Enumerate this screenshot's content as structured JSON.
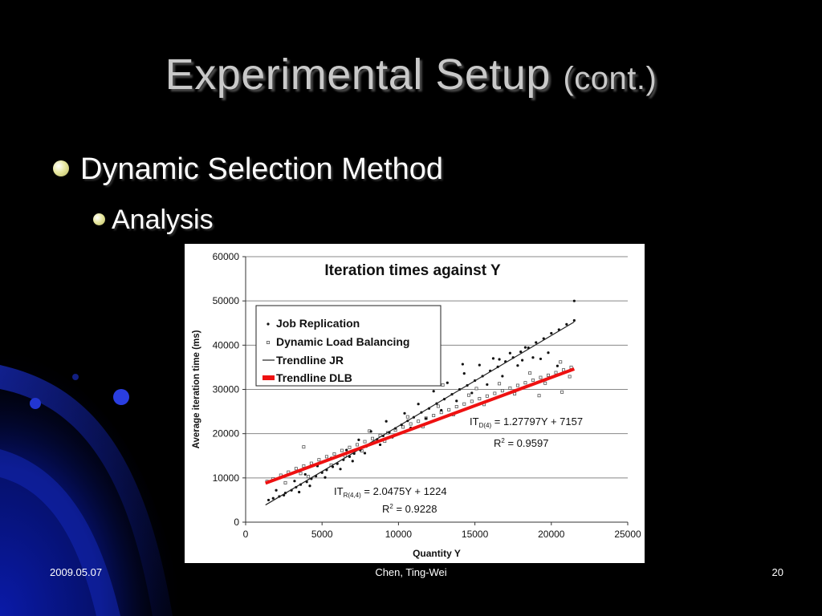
{
  "slide": {
    "title_main": "Experimental Setup",
    "title_sub": "(cont.)",
    "bullet_level1": "Dynamic Selection Method",
    "bullet_level2": "Analysis",
    "footer_date": "2009.05.07",
    "footer_author": "Chen, Ting-Wei",
    "footer_page": "20"
  },
  "colors": {
    "background": "#000000",
    "title": "#c9c9c9",
    "jr_points": "#111111",
    "dlb_points": "#555555",
    "trend_jr": "#222222",
    "trend_dlb": "#ee1111",
    "grid": "#888888"
  },
  "chart_data": {
    "type": "scatter",
    "title": "Iteration times against Y",
    "xlabel": "Quantity Y",
    "ylabel": "Average iteration time (ms)",
    "xlim": [
      0,
      25000
    ],
    "ylim": [
      0,
      60000
    ],
    "xticks": [
      0,
      5000,
      10000,
      15000,
      20000,
      25000
    ],
    "yticks": [
      0,
      10000,
      20000,
      30000,
      40000,
      50000,
      60000
    ],
    "grid": "horizontal",
    "legend_position": "top-left",
    "legend": [
      "Job Replication",
      "Dynamic Load Balancing",
      "Trendline JR",
      "Trendline DLB"
    ],
    "series": [
      {
        "name": "Job Replication",
        "marker": "dot",
        "points": [
          [
            1500,
            5000
          ],
          [
            1800,
            5400
          ],
          [
            2200,
            5800
          ],
          [
            2600,
            6600
          ],
          [
            3000,
            7200
          ],
          [
            3300,
            7900
          ],
          [
            3600,
            8500
          ],
          [
            4000,
            9100
          ],
          [
            4300,
            9800
          ],
          [
            4600,
            10400
          ],
          [
            5000,
            11200
          ],
          [
            5300,
            11800
          ],
          [
            5700,
            12500
          ],
          [
            6000,
            13200
          ],
          [
            6400,
            14100
          ],
          [
            6800,
            14800
          ],
          [
            7100,
            15500
          ],
          [
            7500,
            16300
          ],
          [
            7900,
            17100
          ],
          [
            8300,
            18000
          ],
          [
            8600,
            18700
          ],
          [
            9000,
            19500
          ],
          [
            9400,
            20300
          ],
          [
            9800,
            21200
          ],
          [
            10200,
            22000
          ],
          [
            10600,
            22900
          ],
          [
            11000,
            23700
          ],
          [
            11500,
            24800
          ],
          [
            12000,
            25700
          ],
          [
            12500,
            26800
          ],
          [
            13000,
            27800
          ],
          [
            13500,
            28900
          ],
          [
            14000,
            30000
          ],
          [
            14500,
            30900
          ],
          [
            15000,
            32000
          ],
          [
            15500,
            33000
          ],
          [
            16000,
            34200
          ],
          [
            16500,
            35100
          ],
          [
            17000,
            36300
          ],
          [
            17500,
            37200
          ],
          [
            18000,
            38500
          ],
          [
            18500,
            39400
          ],
          [
            19000,
            40600
          ],
          [
            19500,
            41500
          ],
          [
            20000,
            42700
          ],
          [
            20500,
            43500
          ],
          [
            21000,
            44700
          ],
          [
            21500,
            45600
          ],
          [
            2000,
            7200
          ],
          [
            2500,
            6100
          ],
          [
            3200,
            9300
          ],
          [
            3500,
            6800
          ],
          [
            3900,
            10800
          ],
          [
            4200,
            8200
          ],
          [
            4700,
            12700
          ],
          [
            5200,
            10100
          ],
          [
            5600,
            14500
          ],
          [
            6200,
            12000
          ],
          [
            6600,
            16300
          ],
          [
            7000,
            13800
          ],
          [
            7400,
            18600
          ],
          [
            7800,
            15600
          ],
          [
            8200,
            20500
          ],
          [
            8800,
            17500
          ],
          [
            9200,
            22800
          ],
          [
            9600,
            19200
          ],
          [
            10400,
            24600
          ],
          [
            10800,
            21300
          ],
          [
            11300,
            26700
          ],
          [
            11800,
            23400
          ],
          [
            12300,
            29600
          ],
          [
            12800,
            25300
          ],
          [
            13200,
            31500
          ],
          [
            13800,
            27400
          ],
          [
            14300,
            33600
          ],
          [
            14800,
            29200
          ],
          [
            15300,
            35500
          ],
          [
            15800,
            31100
          ],
          [
            16200,
            37000
          ],
          [
            16800,
            33000
          ],
          [
            17300,
            38200
          ],
          [
            17800,
            35400
          ],
          [
            18300,
            39500
          ],
          [
            18800,
            37200
          ],
          [
            19300,
            36900
          ],
          [
            19800,
            38300
          ],
          [
            21500,
            50000
          ],
          [
            12600,
            33000
          ],
          [
            14200,
            35700
          ],
          [
            16600,
            36800
          ],
          [
            18100,
            36600
          ],
          [
            20400,
            35300
          ]
        ]
      },
      {
        "name": "Dynamic Load Balancing",
        "marker": "square",
        "points": [
          [
            1400,
            9200
          ],
          [
            1800,
            9800
          ],
          [
            2300,
            10600
          ],
          [
            2800,
            11300
          ],
          [
            3300,
            12100
          ],
          [
            3800,
            12700
          ],
          [
            4300,
            13300
          ],
          [
            4800,
            14100
          ],
          [
            5300,
            14800
          ],
          [
            5800,
            15400
          ],
          [
            6300,
            16200
          ],
          [
            6800,
            16900
          ],
          [
            7300,
            17500
          ],
          [
            7800,
            18200
          ],
          [
            8300,
            18900
          ],
          [
            8800,
            19600
          ],
          [
            9300,
            20200
          ],
          [
            9800,
            20800
          ],
          [
            10300,
            21500
          ],
          [
            10800,
            22200
          ],
          [
            11300,
            22800
          ],
          [
            11800,
            23500
          ],
          [
            12300,
            24100
          ],
          [
            12800,
            24800
          ],
          [
            13300,
            25400
          ],
          [
            13800,
            26100
          ],
          [
            14300,
            26700
          ],
          [
            14800,
            27300
          ],
          [
            15300,
            27900
          ],
          [
            15800,
            28500
          ],
          [
            16300,
            29100
          ],
          [
            16800,
            29700
          ],
          [
            17300,
            30300
          ],
          [
            17800,
            30900
          ],
          [
            18300,
            31500
          ],
          [
            18800,
            32100
          ],
          [
            19300,
            32700
          ],
          [
            19800,
            33200
          ],
          [
            20300,
            33800
          ],
          [
            20800,
            34400
          ],
          [
            21300,
            35000
          ],
          [
            2600,
            8900
          ],
          [
            3600,
            11000
          ],
          [
            4100,
            10300
          ],
          [
            5600,
            12900
          ],
          [
            6500,
            15000
          ],
          [
            7600,
            16100
          ],
          [
            8100,
            20600
          ],
          [
            9100,
            18300
          ],
          [
            10600,
            23800
          ],
          [
            11600,
            21600
          ],
          [
            12600,
            26200
          ],
          [
            13600,
            24300
          ],
          [
            14600,
            28700
          ],
          [
            15600,
            26600
          ],
          [
            16600,
            31300
          ],
          [
            17600,
            29000
          ],
          [
            18600,
            33700
          ],
          [
            19600,
            31400
          ],
          [
            20600,
            36200
          ],
          [
            21200,
            32900
          ],
          [
            3800,
            17000
          ],
          [
            12900,
            31000
          ],
          [
            15100,
            30200
          ],
          [
            19200,
            28600
          ],
          [
            20700,
            29400
          ]
        ]
      }
    ],
    "trendlines": [
      {
        "name": "Trendline JR",
        "slope": 2.0475,
        "intercept": 1224,
        "x_range": [
          1300,
          21500
        ]
      },
      {
        "name": "Trendline DLB",
        "slope": 1.27797,
        "intercept": 7157,
        "x_range": [
          1300,
          21500
        ]
      }
    ],
    "annotations": [
      {
        "id": "dlb_eq",
        "base": "IT",
        "subscript": "D(4)",
        "text": " = 1.27797Y + 7157"
      },
      {
        "id": "dlb_r2",
        "base": "R",
        "superscript": "2",
        "text": " = 0.9597"
      },
      {
        "id": "jr_eq",
        "base": "IT",
        "subscript": "R(4,4)",
        "text": " = 2.0475Y + 1224"
      },
      {
        "id": "jr_r2",
        "base": "R",
        "superscript": "2",
        "text": " = 0.9228"
      }
    ]
  }
}
